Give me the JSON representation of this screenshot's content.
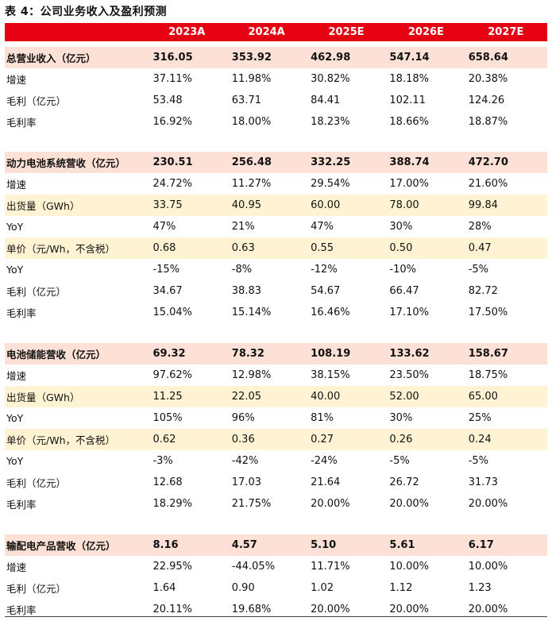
{
  "caption": "表 4：公司业务收入及盈利预测",
  "years": [
    "2023A",
    "2024A",
    "2025E",
    "2026E",
    "2027E"
  ],
  "rows": [
    {
      "label": "总营业收入（亿元）",
      "values": [
        "316.05",
        "353.92",
        "462.98",
        "547.14",
        "658.64"
      ],
      "style": "total"
    },
    {
      "label": "增速",
      "values": [
        "37.11%",
        "11.98%",
        "30.82%",
        "18.18%",
        "20.38%"
      ],
      "style": ""
    },
    {
      "label": "毛利（亿元）",
      "values": [
        "53.48",
        "63.71",
        "84.41",
        "102.11",
        "124.26"
      ],
      "style": ""
    },
    {
      "label": "毛利率",
      "values": [
        "16.92%",
        "18.00%",
        "18.23%",
        "18.66%",
        "18.87%"
      ],
      "style": ""
    },
    {
      "label": "动力电池系统营收（亿元）",
      "values": [
        "230.51",
        "256.48",
        "332.25",
        "388.74",
        "472.70"
      ],
      "style": "total"
    },
    {
      "label": "增速",
      "values": [
        "24.72%",
        "11.27%",
        "29.54%",
        "17.00%",
        "21.60%"
      ],
      "style": ""
    },
    {
      "label": "出货量（GWh）",
      "values": [
        "33.75",
        "40.95",
        "60.00",
        "78.00",
        "99.84"
      ],
      "style": "hl"
    },
    {
      "label": "YoY",
      "values": [
        "47%",
        "21%",
        "47%",
        "30%",
        "28%"
      ],
      "style": ""
    },
    {
      "label": "单价（元/Wh，不含税）",
      "values": [
        "0.68",
        "0.63",
        "0.55",
        "0.50",
        "0.47"
      ],
      "style": "hl"
    },
    {
      "label": "YoY",
      "values": [
        "-15%",
        "-8%",
        "-12%",
        "-10%",
        "-5%"
      ],
      "style": ""
    },
    {
      "label": "毛利（亿元）",
      "values": [
        "34.67",
        "38.83",
        "54.67",
        "66.47",
        "82.72"
      ],
      "style": ""
    },
    {
      "label": "毛利率",
      "values": [
        "15.04%",
        "15.14%",
        "16.46%",
        "17.10%",
        "17.50%"
      ],
      "style": ""
    },
    {
      "label": "电池储能营收（亿元）",
      "values": [
        "69.32",
        "78.32",
        "108.19",
        "133.62",
        "158.67"
      ],
      "style": "total"
    },
    {
      "label": "增速",
      "values": [
        "97.62%",
        "12.98%",
        "38.15%",
        "23.50%",
        "18.75%"
      ],
      "style": ""
    },
    {
      "label": "出货量（GWh）",
      "values": [
        "11.25",
        "22.05",
        "40.00",
        "52.00",
        "65.00"
      ],
      "style": "hl"
    },
    {
      "label": "YoY",
      "values": [
        "105%",
        "96%",
        "81%",
        "30%",
        "25%"
      ],
      "style": ""
    },
    {
      "label": "单价（元/Wh，不含税）",
      "values": [
        "0.62",
        "0.36",
        "0.27",
        "0.26",
        "0.24"
      ],
      "style": "hl"
    },
    {
      "label": "YoY",
      "values": [
        "-3%",
        "-42%",
        "-24%",
        "-5%",
        "-5%"
      ],
      "style": ""
    },
    {
      "label": "毛利（亿元）",
      "values": [
        "12.68",
        "17.03",
        "21.64",
        "26.72",
        "31.73"
      ],
      "style": ""
    },
    {
      "label": "毛利率",
      "values": [
        "18.29%",
        "21.75%",
        "20.00%",
        "20.00%",
        "20.00%"
      ],
      "style": ""
    },
    {
      "label": "输配电产品营收（亿元）",
      "values": [
        "8.16",
        "4.57",
        "5.10",
        "5.61",
        "6.17"
      ],
      "style": "total"
    },
    {
      "label": "增速",
      "values": [
        "22.95%",
        "-44.05%",
        "11.71%",
        "10.00%",
        "10.00%"
      ],
      "style": ""
    },
    {
      "label": "毛利（亿元）",
      "values": [
        "1.64",
        "0.90",
        "1.02",
        "1.12",
        "1.23"
      ],
      "style": ""
    },
    {
      "label": "毛利率",
      "values": [
        "20.11%",
        "19.68%",
        "20.00%",
        "20.00%",
        "20.00%"
      ],
      "style": ""
    }
  ],
  "colors": {
    "header_bg": "#e60012",
    "total_bg": "#fde1d6",
    "highlight_bg": "#fff3d3"
  }
}
